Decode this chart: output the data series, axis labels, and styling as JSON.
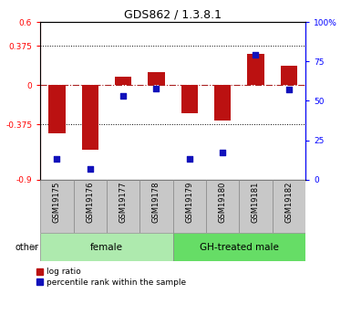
{
  "title": "GDS862 / 1.3.8.1",
  "samples": [
    "GSM19175",
    "GSM19176",
    "GSM19177",
    "GSM19178",
    "GSM19179",
    "GSM19180",
    "GSM19181",
    "GSM19182"
  ],
  "log_ratio": [
    -0.46,
    -0.62,
    0.08,
    0.12,
    -0.27,
    -0.34,
    0.3,
    0.18
  ],
  "percentile_rank": [
    13,
    7,
    53,
    58,
    13,
    17,
    79,
    57
  ],
  "ylim_left": [
    -0.9,
    0.6
  ],
  "ylim_right": [
    0,
    100
  ],
  "yticks_left": [
    -0.9,
    -0.375,
    0,
    0.375,
    0.6
  ],
  "ytick_labels_left": [
    "-0.9",
    "-0.375",
    "0",
    "0.375",
    "0.6"
  ],
  "yticks_right": [
    0,
    25,
    50,
    75,
    100
  ],
  "ytick_labels_right": [
    "0",
    "25",
    "50",
    "75",
    "100%"
  ],
  "hlines": [
    0.375,
    -0.375
  ],
  "groups": [
    {
      "label": "female",
      "start": 0,
      "end": 3,
      "color": "#aeeaae"
    },
    {
      "label": "GH-treated male",
      "start": 4,
      "end": 7,
      "color": "#66dd66"
    }
  ],
  "bar_color": "#BB1111",
  "dot_color": "#1111BB",
  "bar_width": 0.5,
  "dot_size": 18,
  "zero_line_color": "#AA2222",
  "hline_color": "#000000",
  "sample_box_color": "#C8C8C8",
  "other_label": "other",
  "legend_items": [
    "log ratio",
    "percentile rank within the sample"
  ],
  "fig_width": 3.85,
  "fig_height": 3.45,
  "dpi": 100
}
